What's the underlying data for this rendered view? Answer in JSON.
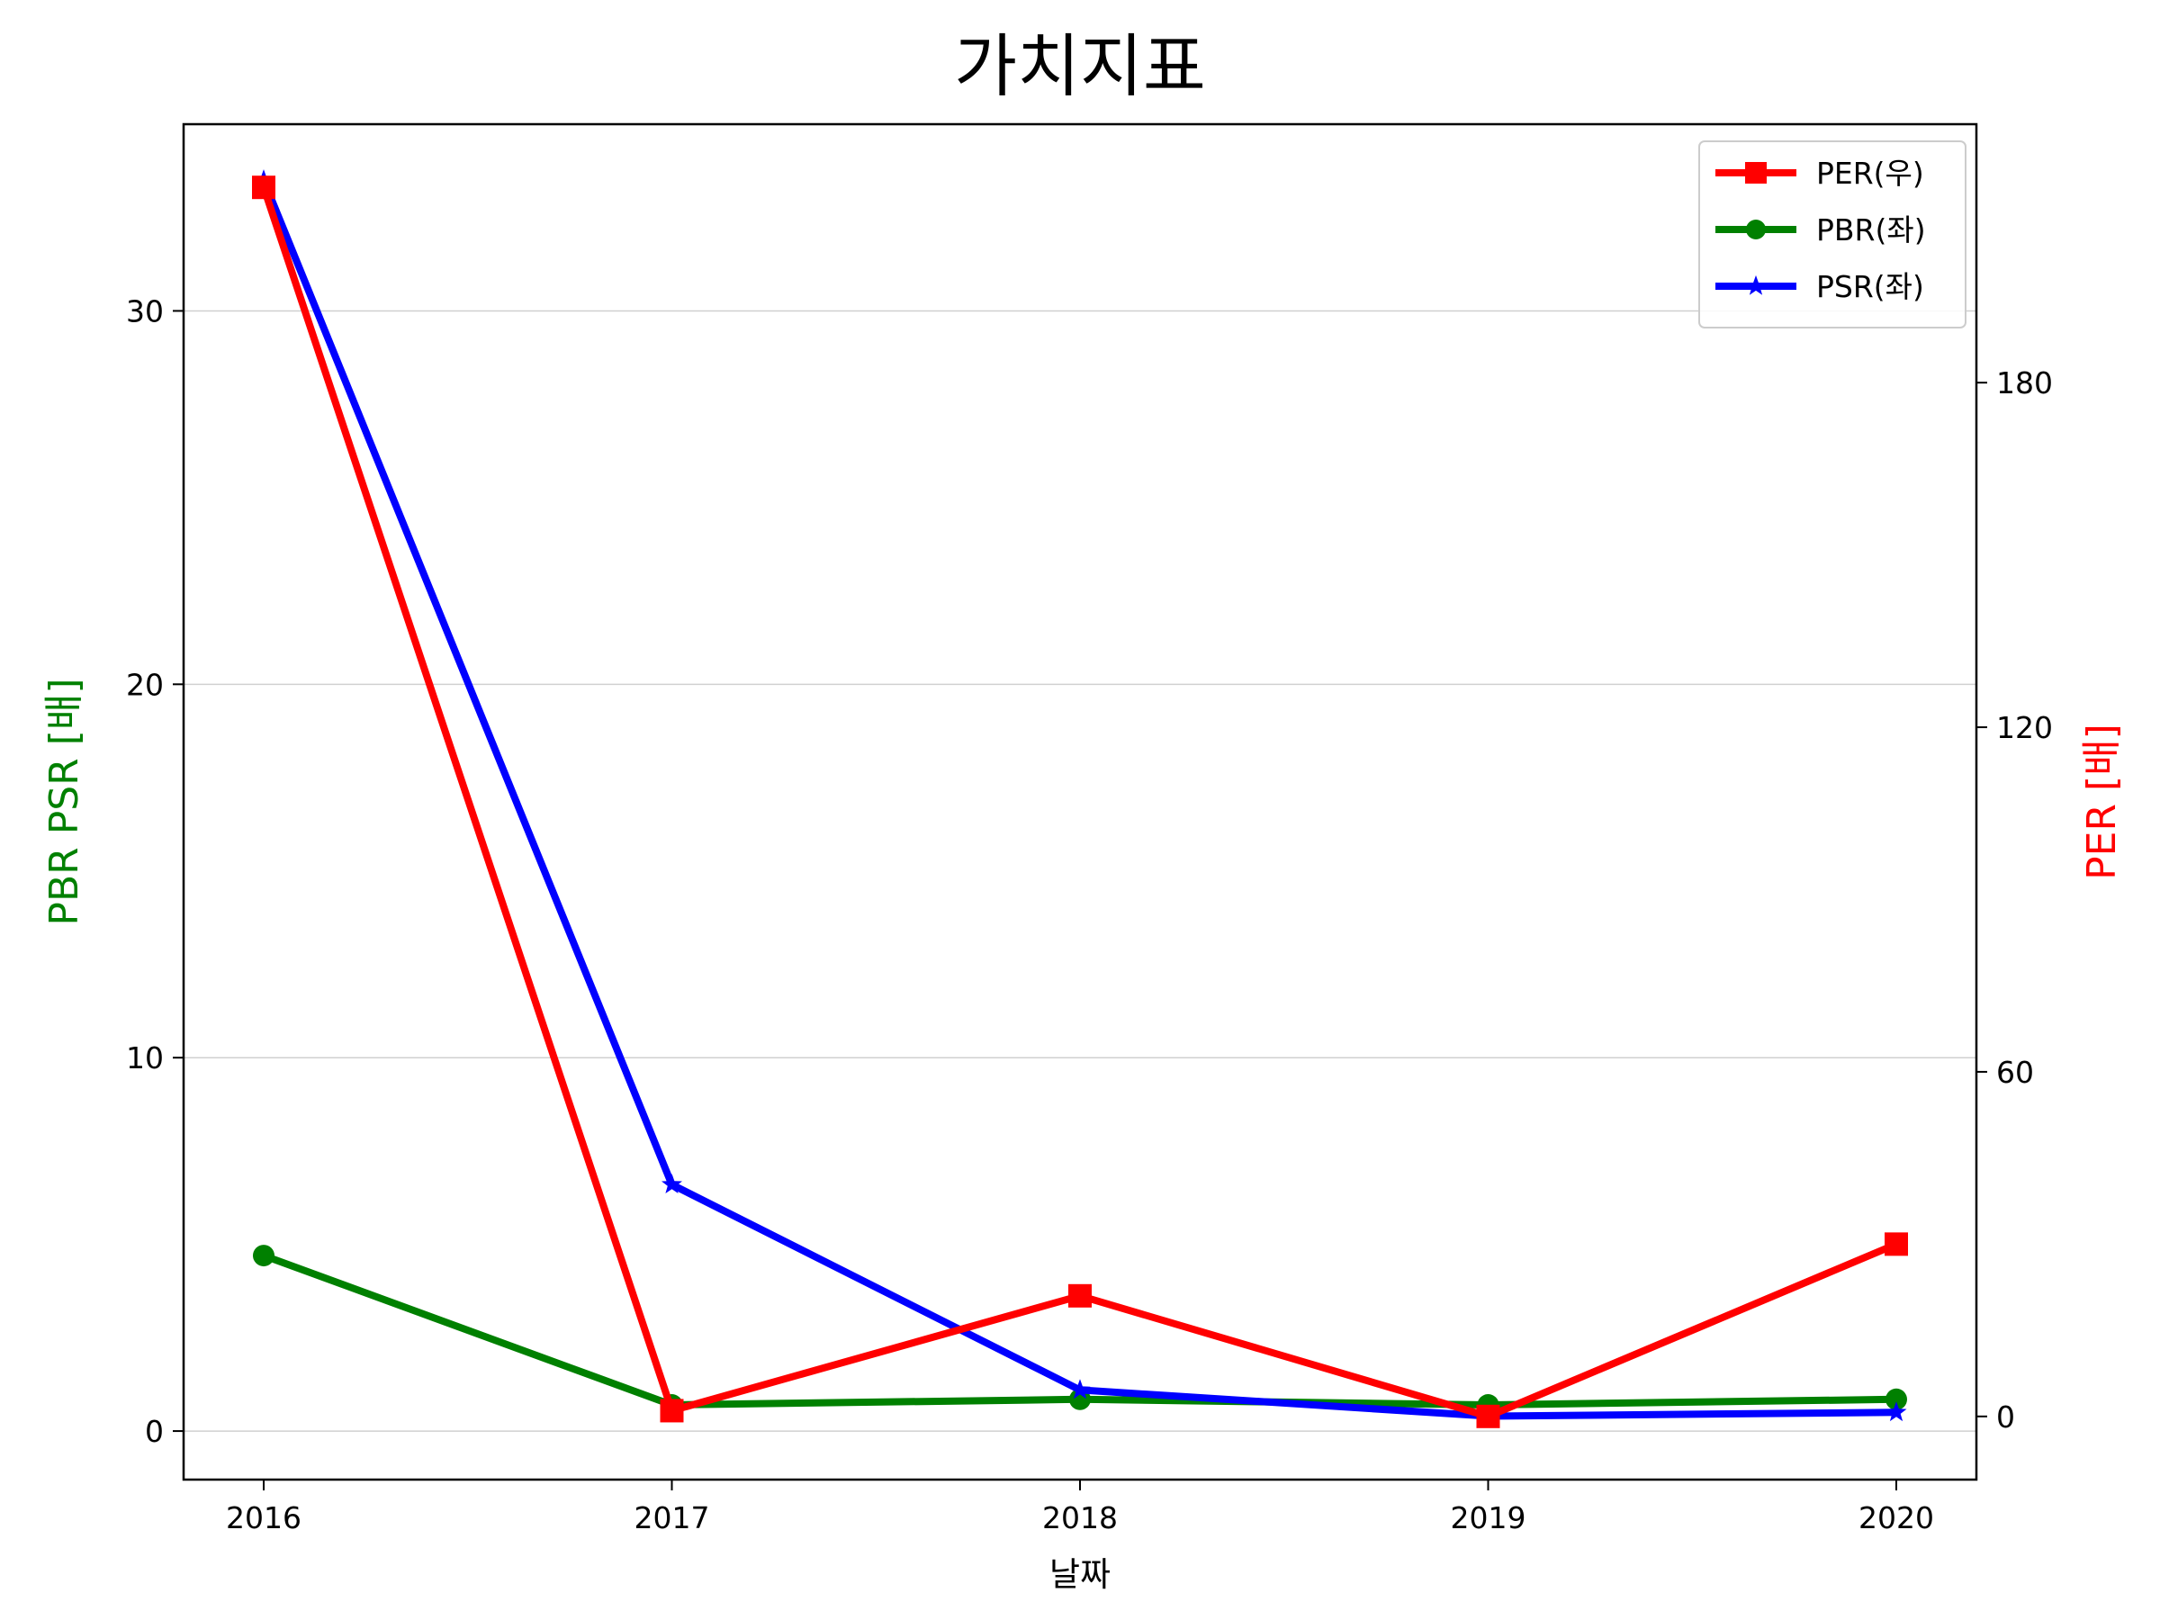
{
  "chart_data": {
    "type": "line",
    "title": "가치지표",
    "xlabel": "날짜",
    "ylabel_left": "PBR PSR [배]",
    "ylabel_right": "PER [배]",
    "categories": [
      "2016",
      "2017",
      "2018",
      "2019",
      "2020"
    ],
    "left_axis": {
      "ylim": [
        -1.3,
        35
      ],
      "ticks": [
        0,
        10,
        20,
        30
      ]
    },
    "right_axis": {
      "ylim": [
        -11,
        225
      ],
      "ticks": [
        0,
        60,
        120,
        180
      ]
    },
    "grid": "horizontal",
    "legend_position": "top-right",
    "series": [
      {
        "name": "PER(우)",
        "axis": "right",
        "color": "#ff0000",
        "marker": "square",
        "values": [
          214,
          1,
          21,
          0,
          30
        ]
      },
      {
        "name": "PBR(좌)",
        "axis": "left",
        "color": "#008000",
        "marker": "circle",
        "values": [
          4.7,
          0.7,
          0.85,
          0.7,
          0.85
        ]
      },
      {
        "name": "PSR(좌)",
        "axis": "left",
        "color": "#0000ff",
        "marker": "star",
        "values": [
          33.5,
          6.6,
          1.1,
          0.4,
          0.5
        ]
      }
    ],
    "colors": {
      "left_label": "#008000",
      "right_label": "#ff0000",
      "grid": "#d0d0d0"
    }
  }
}
